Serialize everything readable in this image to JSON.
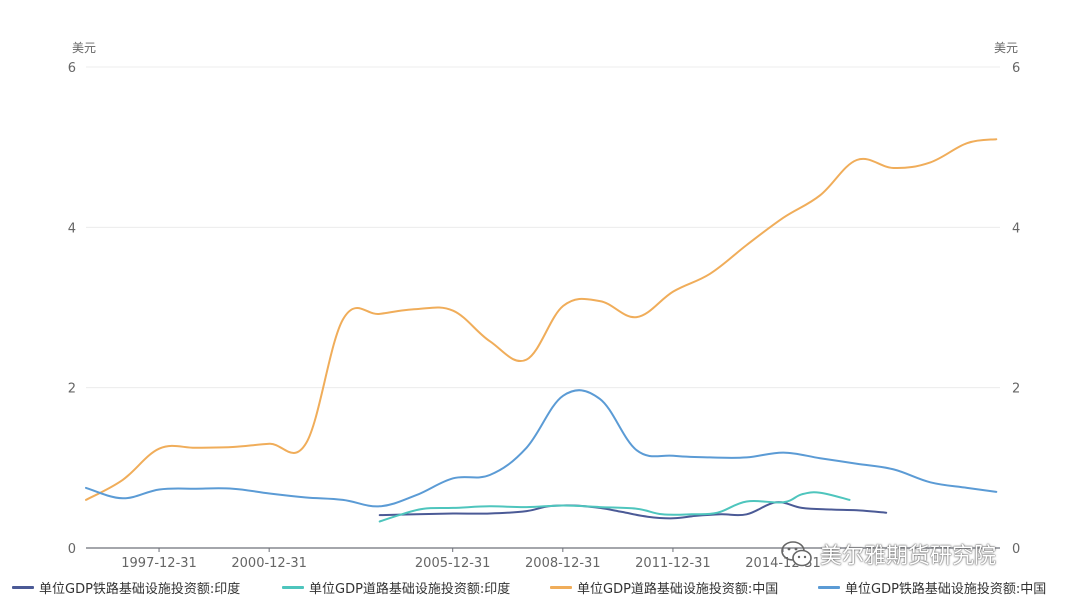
{
  "watermark": "美尔雅期货研究院",
  "chart_data": {
    "type": "line",
    "y_unit_left": "美元",
    "y_unit_right": "美元",
    "ylim": [
      0,
      6
    ],
    "y_ticks": [
      0,
      2,
      4,
      6
    ],
    "x_range": [
      1996.0,
      2020.9
    ],
    "x_ticks": [
      {
        "label": "1997-12-31",
        "value": 1997.99
      },
      {
        "label": "2000-12-31",
        "value": 2000.99
      },
      {
        "label": "2005-12-31",
        "value": 2005.99
      },
      {
        "label": "2008-12-31",
        "value": 2008.99
      },
      {
        "label": "2011-12-31",
        "value": 2011.99
      },
      {
        "label": "2014-12-31",
        "value": 2014.99
      }
    ],
    "grid": "horizontal",
    "legend_position": "bottom",
    "series": [
      {
        "name": "单位GDP铁路基础设施投资额:印度",
        "color": "#4b5a96",
        "x": [
          2004.0,
          2005.0,
          2006.0,
          2007.0,
          2008.0,
          2008.6,
          2009.3,
          2010.0,
          2010.6,
          2011.3,
          2012.0,
          2012.6,
          2013.3,
          2014.0,
          2014.8,
          2015.5,
          2016.3,
          2017.0,
          2017.8
        ],
        "values": [
          0.41,
          0.42,
          0.43,
          0.43,
          0.46,
          0.52,
          0.53,
          0.5,
          0.45,
          0.39,
          0.37,
          0.4,
          0.42,
          0.42,
          0.57,
          0.5,
          0.48,
          0.47,
          0.44
        ]
      },
      {
        "name": "单位GDP道路基础设施投资额:印度",
        "color": "#4ec5bd",
        "x": [
          2004.0,
          2004.6,
          2005.2,
          2006.0,
          2007.0,
          2008.0,
          2009.0,
          2010.0,
          2011.0,
          2011.7,
          2012.5,
          2013.2,
          2014.0,
          2015.0,
          2015.5,
          2016.0,
          2016.8
        ],
        "values": [
          0.33,
          0.42,
          0.49,
          0.5,
          0.52,
          0.51,
          0.53,
          0.51,
          0.49,
          0.42,
          0.42,
          0.44,
          0.58,
          0.57,
          0.67,
          0.69,
          0.6
        ]
      },
      {
        "name": "单位GDP道路基础设施投资额:中国",
        "color": "#f0ad5a",
        "x": [
          1996.0,
          1997.0,
          1998.0,
          1999.0,
          2000.0,
          2001.0,
          2002.0,
          2003.0,
          2004.0,
          2005.0,
          2006.0,
          2007.0,
          2008.0,
          2009.0,
          2010.0,
          2011.0,
          2012.0,
          2013.0,
          2014.0,
          2015.0,
          2016.0,
          2017.0,
          2018.0,
          2019.0,
          2020.0,
          2020.8
        ],
        "values": [
          0.6,
          0.85,
          1.24,
          1.25,
          1.26,
          1.3,
          1.31,
          2.85,
          2.92,
          2.98,
          2.96,
          2.58,
          2.35,
          3.02,
          3.08,
          2.88,
          3.2,
          3.42,
          3.78,
          4.12,
          4.4,
          4.84,
          4.74,
          4.81,
          5.05,
          5.1
        ]
      },
      {
        "name": "单位GDP铁路基础设施投资额:中国",
        "color": "#5b9bd5",
        "x": [
          1996.0,
          1997.0,
          1998.0,
          1999.0,
          2000.0,
          2001.0,
          2002.0,
          2003.0,
          2004.0,
          2005.0,
          2006.0,
          2007.0,
          2008.0,
          2009.0,
          2010.0,
          2011.0,
          2012.0,
          2013.0,
          2014.0,
          2015.0,
          2016.0,
          2017.0,
          2018.0,
          2019.0,
          2020.0,
          2020.8
        ],
        "values": [
          0.75,
          0.62,
          0.73,
          0.74,
          0.74,
          0.68,
          0.63,
          0.6,
          0.52,
          0.66,
          0.87,
          0.91,
          1.25,
          1.9,
          1.86,
          1.22,
          1.15,
          1.13,
          1.13,
          1.19,
          1.12,
          1.05,
          0.98,
          0.82,
          0.75,
          0.7
        ]
      }
    ]
  }
}
